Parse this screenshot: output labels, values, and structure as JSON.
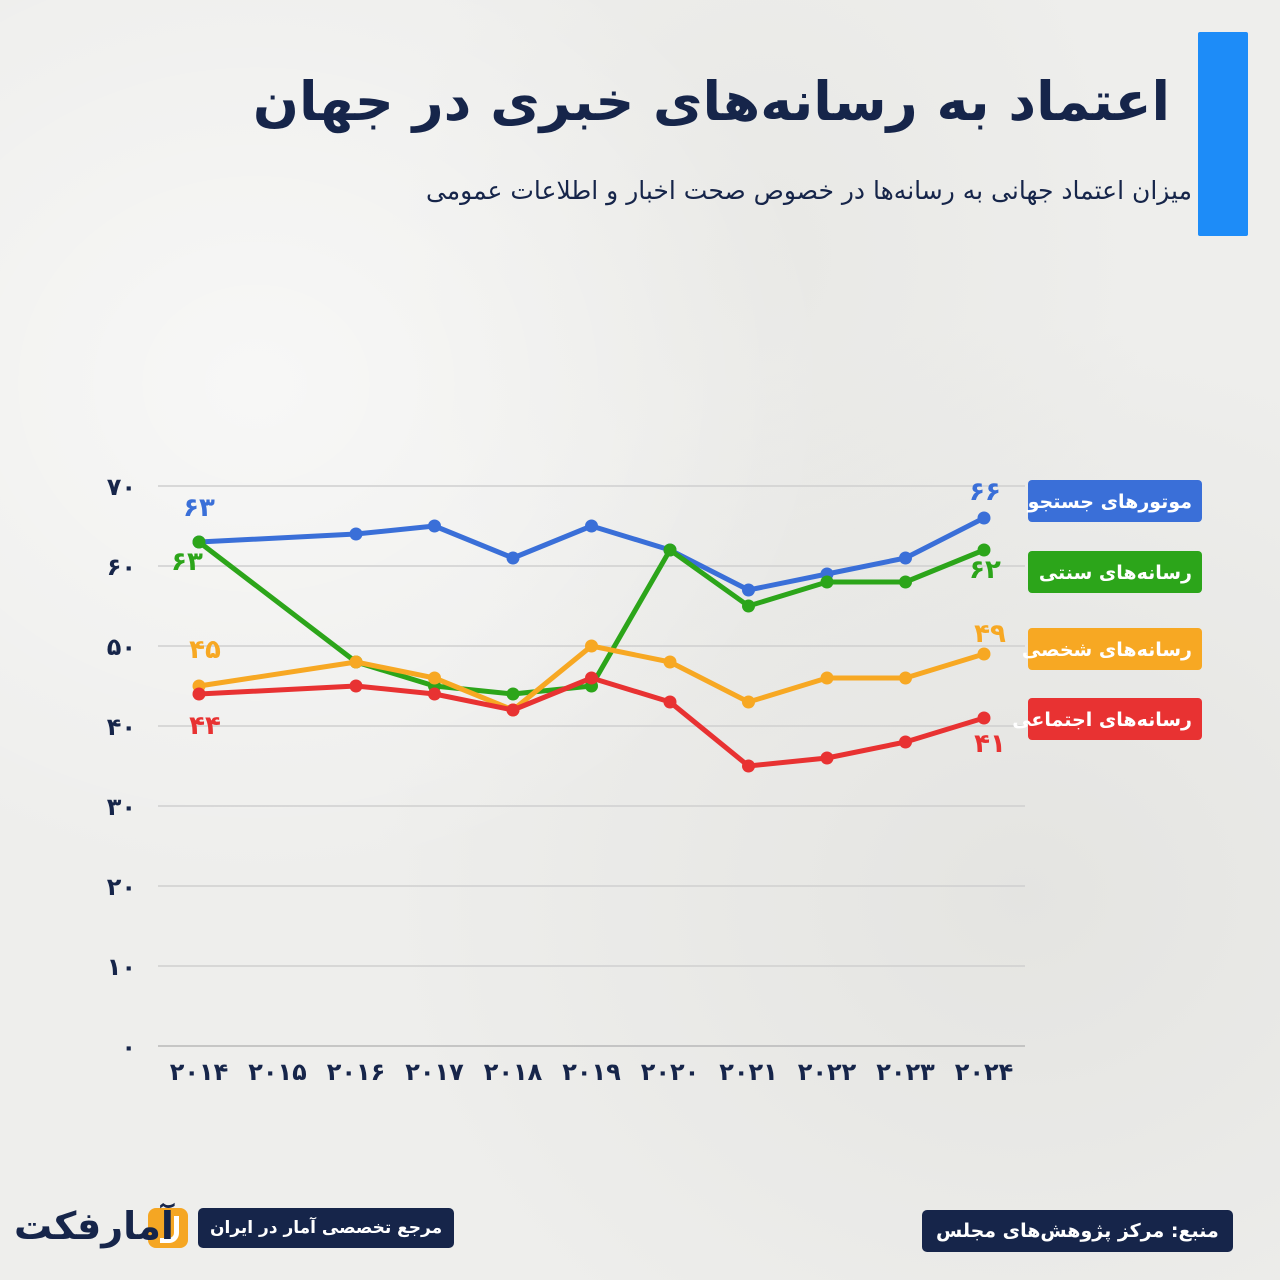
{
  "header": {
    "title": "اعتماد به رسانه‌های خبری در جهان",
    "subtitle": "میزان اعتماد جهانی به رسانه‌ها در خصوص صحت اخبار و اطلاعات عمومی",
    "accent_color": "#1d8cf8"
  },
  "chart_data": {
    "type": "line",
    "x": [
      "2014",
      "2015",
      "2016",
      "2017",
      "2018",
      "2019",
      "2020",
      "2021",
      "2022",
      "2023",
      "2024"
    ],
    "x_tick_labels": [
      "۲۰۱۴",
      "۲۰۱۵",
      "۲۰۱۶",
      "۲۰۱۷",
      "۲۰۱۸",
      "۲۰۱۹",
      "۲۰۲۰",
      "۲۰۲۱",
      "۲۰۲۲",
      "۲۰۲۳",
      "۲۰۲۴"
    ],
    "y_tick_labels": [
      "۰",
      "۱۰",
      "۲۰",
      "۳۰",
      "۴۰",
      "۵۰",
      "۶۰",
      "۷۰"
    ],
    "ylim": [
      0,
      70
    ],
    "grid": true,
    "legend_position": "right",
    "series": [
      {
        "name": "موتورهای جستجو",
        "color": "#3a6fd8",
        "values": [
          63,
          null,
          64,
          65,
          61,
          65,
          62,
          57,
          59,
          61,
          66
        ],
        "start_label": "۶۳",
        "end_label": "۶۶"
      },
      {
        "name": "رسانه‌های سنتی",
        "color": "#2ca51a",
        "values": [
          63,
          null,
          48,
          45,
          44,
          45,
          62,
          55,
          58,
          58,
          62
        ],
        "start_label": "۶۳",
        "end_label": "۶۲"
      },
      {
        "name": "رسانه‌های شخصی",
        "color": "#f7a823",
        "values": [
          45,
          null,
          48,
          46,
          42,
          50,
          48,
          43,
          46,
          46,
          49
        ],
        "start_label": "۴۵",
        "end_label": "۴۹"
      },
      {
        "name": "رسانه‌های اجتماعی",
        "color": "#e83232",
        "values": [
          44,
          null,
          45,
          44,
          42,
          46,
          43,
          35,
          36,
          38,
          41
        ],
        "start_label": "۴۴",
        "end_label": "۴۱"
      }
    ]
  },
  "footer": {
    "source": "منبع: مرکز پژوهش‌های مجلس",
    "reference": "مرجع تخصصی آمار در ایران",
    "logo_text": "آمارفکت",
    "logo_color": "#f5a623"
  }
}
